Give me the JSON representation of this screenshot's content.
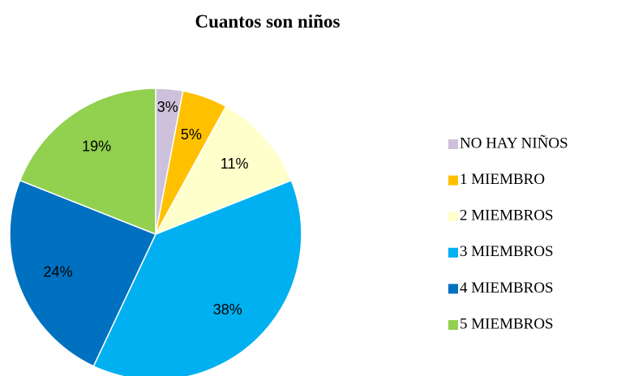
{
  "chart_data": {
    "type": "pie",
    "title": "Cuantos son niños",
    "categories": [
      "NO HAY NIÑOS",
      "1 MIEMBRO",
      "2 MIEMBROS",
      "3 MIEMBROS",
      "4 MIEMBROS",
      "5 MIEMBROS"
    ],
    "values": [
      3,
      5,
      11,
      38,
      24,
      19
    ],
    "value_labels": [
      "3%",
      "5%",
      "11%",
      "38%",
      "24%",
      "19%"
    ],
    "colors": [
      "#ccc0da",
      "#ffc000",
      "#ffffcc",
      "#00b0f0",
      "#0070c0",
      "#92d050"
    ],
    "legend": "right"
  }
}
